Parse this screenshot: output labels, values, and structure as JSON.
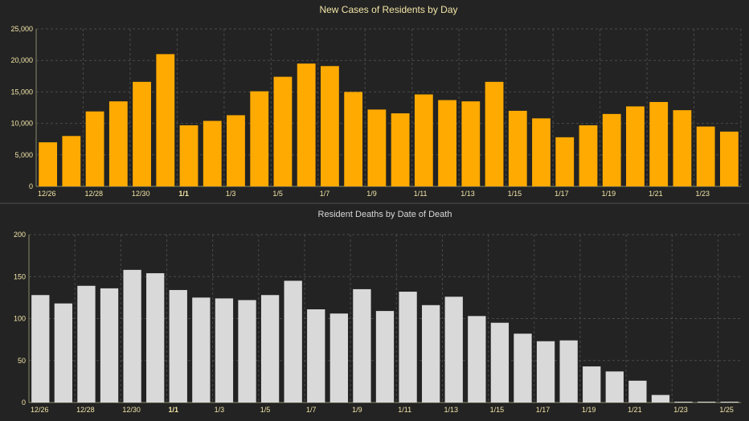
{
  "colors": {
    "background": "#232323",
    "cases_bar": "#FFAA00",
    "deaths_bar": "#D9D9D9",
    "cases_title": "#F2E5A8",
    "deaths_title": "#D8D8D8",
    "axis_text": "#F2E5A8",
    "grid": "#4a4a4a"
  },
  "chart_data": [
    {
      "type": "bar",
      "title": "New Cases of Residents by Day",
      "xlabel": "",
      "ylabel": "",
      "ylim": [
        0,
        25000
      ],
      "yticks": [
        0,
        5000,
        10000,
        15000,
        20000,
        25000
      ],
      "ytick_labels": [
        "0",
        "5,000",
        "10,000",
        "15,000",
        "20,000",
        "25,000"
      ],
      "grid": true,
      "categories": [
        "12/26",
        "12/27",
        "12/28",
        "12/29",
        "12/30",
        "12/31",
        "1/1",
        "1/2",
        "1/3",
        "1/4",
        "1/5",
        "1/6",
        "1/7",
        "1/8",
        "1/9",
        "1/10",
        "1/11",
        "1/12",
        "1/13",
        "1/14",
        "1/15",
        "1/16",
        "1/17",
        "1/18",
        "1/19",
        "1/20",
        "1/21",
        "1/22",
        "1/23",
        "1/24"
      ],
      "xtick_labels": [
        "12/26",
        "",
        "12/28",
        "",
        "12/30",
        "",
        "1/1",
        "",
        "1/3",
        "",
        "1/5",
        "",
        "1/7",
        "",
        "1/9",
        "",
        "1/11",
        "",
        "1/13",
        "",
        "1/15",
        "",
        "1/17",
        "",
        "1/19",
        "",
        "1/21",
        "",
        "1/23",
        ""
      ],
      "values": [
        7000,
        8000,
        11900,
        13500,
        16600,
        21000,
        9700,
        10400,
        11300,
        15100,
        17400,
        19500,
        19100,
        15000,
        12200,
        11600,
        14600,
        13700,
        13500,
        16600,
        12000,
        10800,
        7800,
        9700,
        11500,
        12700,
        13400,
        12100,
        9500,
        8700
      ]
    },
    {
      "type": "bar",
      "title": "Resident Deaths by Date of Death",
      "xlabel": "",
      "ylabel": "",
      "ylim": [
        0,
        200
      ],
      "yticks": [
        0,
        50,
        100,
        150,
        200
      ],
      "ytick_labels": [
        "0",
        "50",
        "100",
        "150",
        "200"
      ],
      "grid": true,
      "categories": [
        "12/26",
        "12/27",
        "12/28",
        "12/29",
        "12/30",
        "12/31",
        "1/1",
        "1/2",
        "1/3",
        "1/4",
        "1/5",
        "1/6",
        "1/7",
        "1/8",
        "1/9",
        "1/10",
        "1/11",
        "1/12",
        "1/13",
        "1/14",
        "1/15",
        "1/16",
        "1/17",
        "1/18",
        "1/19",
        "1/20",
        "1/21",
        "1/22",
        "1/23",
        "1/24",
        "1/25"
      ],
      "xtick_labels": [
        "12/26",
        "",
        "12/28",
        "",
        "12/30",
        "",
        "1/1",
        "",
        "1/3",
        "",
        "1/5",
        "",
        "1/7",
        "",
        "1/9",
        "",
        "1/11",
        "",
        "1/13",
        "",
        "1/15",
        "",
        "1/17",
        "",
        "1/19",
        "",
        "1/21",
        "",
        "1/23",
        "",
        "1/25"
      ],
      "values": [
        128,
        118,
        139,
        136,
        158,
        154,
        134,
        125,
        124,
        122,
        128,
        145,
        111,
        106,
        135,
        109,
        132,
        116,
        126,
        103,
        95,
        82,
        73,
        74,
        43,
        37,
        26,
        9,
        1,
        1,
        1
      ]
    }
  ]
}
